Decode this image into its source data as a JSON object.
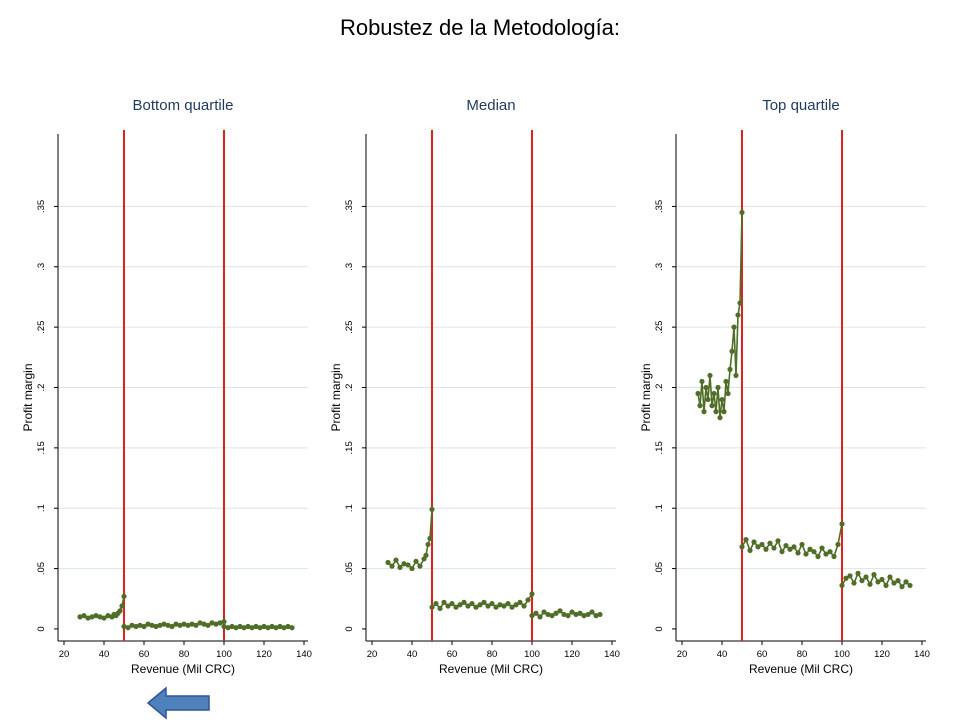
{
  "slide": {
    "title": "Robustez de la Metodología:"
  },
  "chart_data": [
    {
      "type": "line",
      "title": "Bottom quartile",
      "xlabel": "Revenue (Mil CRC)",
      "ylabel": "Profit margin",
      "xlim": [
        17,
        142
      ],
      "ylim": [
        -0.01,
        0.41
      ],
      "xticks": [
        20,
        40,
        60,
        80,
        100,
        120,
        140
      ],
      "yticks": [
        0,
        0.05,
        0.1,
        0.15,
        0.2,
        0.25,
        0.3,
        0.35
      ],
      "ytick_labels": [
        "0",
        ".05",
        ".1",
        ".15",
        ".2",
        ".25",
        ".3",
        ".35"
      ],
      "vlines": [
        50,
        100
      ],
      "grid": true,
      "series": [
        {
          "segment": "below 50",
          "x": [
            28,
            30,
            32,
            34,
            36,
            38,
            40,
            42,
            44,
            45,
            46,
            47,
            48,
            49,
            50
          ],
          "y": [
            0.01,
            0.011,
            0.009,
            0.01,
            0.011,
            0.01,
            0.009,
            0.011,
            0.01,
            0.012,
            0.011,
            0.013,
            0.015,
            0.019,
            0.027
          ]
        },
        {
          "segment": "50 to 100",
          "x": [
            50,
            52,
            54,
            56,
            58,
            60,
            62,
            64,
            66,
            68,
            70,
            72,
            74,
            76,
            78,
            80,
            82,
            84,
            86,
            88,
            90,
            92,
            94,
            96,
            98,
            100
          ],
          "y": [
            0.002,
            0.001,
            0.003,
            0.002,
            0.003,
            0.002,
            0.004,
            0.003,
            0.002,
            0.003,
            0.004,
            0.003,
            0.002,
            0.004,
            0.003,
            0.004,
            0.003,
            0.004,
            0.003,
            0.005,
            0.004,
            0.003,
            0.005,
            0.004,
            0.005,
            0.006
          ]
        },
        {
          "segment": "above 100",
          "x": [
            100,
            102,
            104,
            106,
            108,
            110,
            112,
            114,
            116,
            118,
            120,
            122,
            124,
            126,
            128,
            130,
            132,
            134
          ],
          "y": [
            0.002,
            0.001,
            0.002,
            0.001,
            0.002,
            0.001,
            0.002,
            0.001,
            0.002,
            0.001,
            0.002,
            0.001,
            0.002,
            0.001,
            0.002,
            0.001,
            0.002,
            0.001
          ]
        }
      ]
    },
    {
      "type": "line",
      "title": "Median",
      "xlabel": "Revenue (Mil CRC)",
      "ylabel": "Profit margin",
      "xlim": [
        17,
        142
      ],
      "ylim": [
        -0.01,
        0.41
      ],
      "xticks": [
        20,
        40,
        60,
        80,
        100,
        120,
        140
      ],
      "yticks": [
        0,
        0.05,
        0.1,
        0.15,
        0.2,
        0.25,
        0.3,
        0.35
      ],
      "ytick_labels": [
        "0",
        ".05",
        ".1",
        ".15",
        ".2",
        ".25",
        ".3",
        ".35"
      ],
      "vlines": [
        50,
        100
      ],
      "grid": true,
      "series": [
        {
          "segment": "below 50",
          "x": [
            28,
            30,
            32,
            34,
            36,
            38,
            40,
            42,
            44,
            46,
            47,
            48,
            49,
            50
          ],
          "y": [
            0.055,
            0.052,
            0.057,
            0.051,
            0.054,
            0.053,
            0.05,
            0.056,
            0.052,
            0.058,
            0.061,
            0.07,
            0.075,
            0.099
          ]
        },
        {
          "segment": "50 to 100",
          "x": [
            50,
            52,
            54,
            56,
            58,
            60,
            62,
            64,
            66,
            68,
            70,
            72,
            74,
            76,
            78,
            80,
            82,
            84,
            86,
            88,
            90,
            92,
            94,
            96,
            98,
            100
          ],
          "y": [
            0.018,
            0.021,
            0.017,
            0.022,
            0.019,
            0.021,
            0.018,
            0.02,
            0.022,
            0.019,
            0.021,
            0.018,
            0.02,
            0.022,
            0.019,
            0.021,
            0.018,
            0.02,
            0.019,
            0.021,
            0.018,
            0.02,
            0.022,
            0.019,
            0.024,
            0.029
          ]
        },
        {
          "segment": "above 100",
          "x": [
            100,
            102,
            104,
            106,
            108,
            110,
            112,
            114,
            116,
            118,
            120,
            122,
            124,
            126,
            128,
            130,
            132,
            134
          ],
          "y": [
            0.011,
            0.013,
            0.01,
            0.014,
            0.012,
            0.011,
            0.013,
            0.015,
            0.012,
            0.011,
            0.014,
            0.012,
            0.013,
            0.011,
            0.012,
            0.014,
            0.011,
            0.012
          ]
        }
      ]
    },
    {
      "type": "line",
      "title": "Top quartile",
      "xlabel": "Revenue (Mil CRC)",
      "ylabel": "Profit margin",
      "xlim": [
        17,
        142
      ],
      "ylim": [
        -0.01,
        0.41
      ],
      "xticks": [
        20,
        40,
        60,
        80,
        100,
        120,
        140
      ],
      "yticks": [
        0,
        0.05,
        0.1,
        0.15,
        0.2,
        0.25,
        0.3,
        0.35
      ],
      "ytick_labels": [
        "0",
        ".05",
        ".1",
        ".15",
        ".2",
        ".25",
        ".3",
        ".35"
      ],
      "vlines": [
        50,
        100
      ],
      "grid": true,
      "series": [
        {
          "segment": "below 50",
          "x": [
            28,
            29,
            30,
            31,
            32,
            33,
            34,
            35,
            36,
            37,
            38,
            39,
            40,
            41,
            42,
            43,
            44,
            45,
            46,
            47,
            48,
            49,
            50
          ],
          "y": [
            0.195,
            0.185,
            0.205,
            0.18,
            0.2,
            0.19,
            0.21,
            0.185,
            0.195,
            0.18,
            0.2,
            0.175,
            0.19,
            0.18,
            0.205,
            0.195,
            0.215,
            0.23,
            0.25,
            0.21,
            0.26,
            0.27,
            0.345
          ]
        },
        {
          "segment": "50 to 100",
          "x": [
            50,
            52,
            54,
            56,
            58,
            60,
            62,
            64,
            66,
            68,
            70,
            72,
            74,
            76,
            78,
            80,
            82,
            84,
            86,
            88,
            90,
            92,
            94,
            96,
            98,
            100
          ],
          "y": [
            0.068,
            0.074,
            0.065,
            0.072,
            0.068,
            0.07,
            0.066,
            0.071,
            0.067,
            0.073,
            0.064,
            0.069,
            0.066,
            0.068,
            0.063,
            0.07,
            0.062,
            0.066,
            0.064,
            0.06,
            0.067,
            0.062,
            0.064,
            0.06,
            0.07,
            0.087
          ]
        },
        {
          "segment": "above 100",
          "x": [
            100,
            102,
            104,
            106,
            108,
            110,
            112,
            114,
            116,
            118,
            120,
            122,
            124,
            126,
            128,
            130,
            132,
            134
          ],
          "y": [
            0.036,
            0.042,
            0.044,
            0.038,
            0.046,
            0.04,
            0.043,
            0.037,
            0.045,
            0.039,
            0.041,
            0.036,
            0.043,
            0.038,
            0.04,
            0.035,
            0.039,
            0.036
          ]
        }
      ]
    }
  ],
  "colors": {
    "series": "#4f6e28",
    "vline": "#e3201b",
    "grid": "#d9e4ea",
    "title": "#1f3a5f",
    "arrow": "#4f81bd"
  },
  "nav": {
    "back_icon": "left-arrow-icon"
  }
}
